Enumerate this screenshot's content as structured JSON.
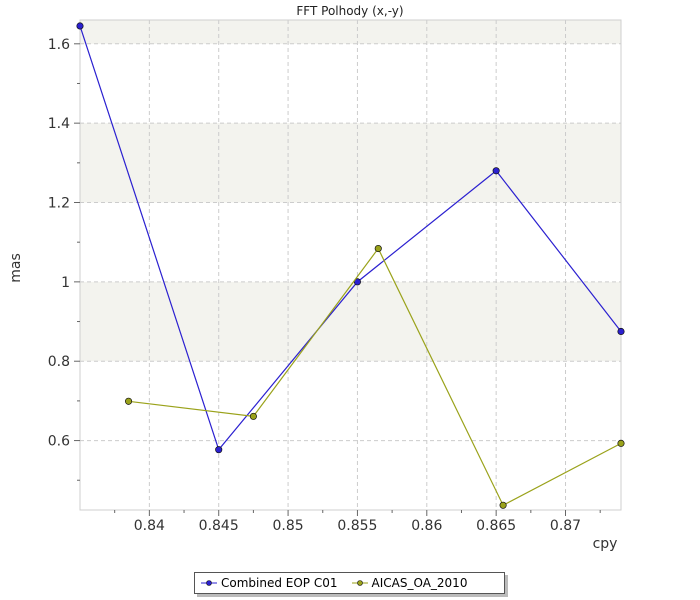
{
  "chart_data": {
    "type": "line",
    "title": "FFT Polhody (x,-y)",
    "xlabel": "cpy",
    "ylabel": "mas",
    "xlim": [
      0.835,
      0.874
    ],
    "ylim": [
      0.425,
      1.66
    ],
    "x_ticks": [
      0.84,
      0.845,
      0.85,
      0.855,
      0.86,
      0.865,
      0.87
    ],
    "x_tick_labels": [
      "0.84",
      "0.845",
      "0.85",
      "0.855",
      "0.86",
      "0.865",
      "0.87"
    ],
    "y_ticks": [
      0.6,
      0.8,
      1.0,
      1.2,
      1.4,
      1.6
    ],
    "y_tick_labels": [
      "0.6",
      "0.8",
      "1",
      "1.2",
      "1.4",
      "1.6"
    ],
    "grid": true,
    "legend_position": "bottom-center",
    "series": [
      {
        "name": "Combined EOP C01",
        "color": "#2b20d0",
        "x": [
          0.835,
          0.845,
          0.855,
          0.865,
          0.874
        ],
        "y": [
          1.645,
          0.577,
          1.0,
          1.28,
          0.875
        ]
      },
      {
        "name": "AICAS_OA_2010",
        "color": "#9aa21a",
        "x": [
          0.8385,
          0.8475,
          0.8565,
          0.8655,
          0.874
        ],
        "y": [
          0.699,
          0.661,
          1.084,
          0.437,
          0.593
        ]
      }
    ]
  }
}
